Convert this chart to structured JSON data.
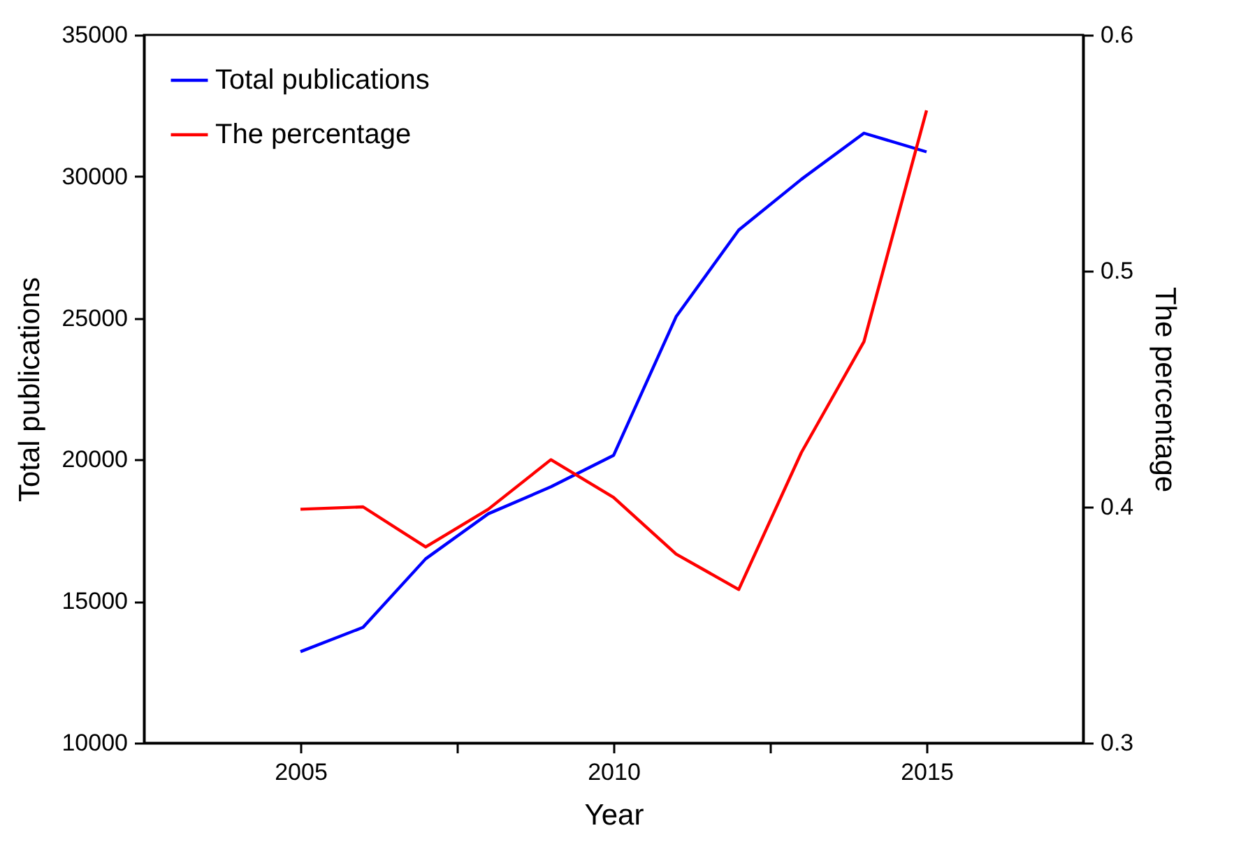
{
  "chart_data": {
    "type": "line",
    "xlabel": "Year",
    "ylabel": "Total publications",
    "y2label": "The percentage",
    "x": [
      2005,
      2006,
      2007,
      2008,
      2009,
      2010,
      2011,
      2012,
      2013,
      2014,
      2015
    ],
    "series": [
      {
        "name": "Total publications",
        "color": "#0000ff",
        "values": [
          13220,
          14080,
          16500,
          18090,
          19040,
          20150,
          25050,
          28110,
          29900,
          31530,
          30870
        ]
      },
      {
        "name": "The percentage",
        "color": "#ff0000",
        "axis": "y2",
        "values": [
          0.399,
          0.4,
          0.383,
          0.399,
          0.42,
          0.404,
          0.38,
          0.365,
          0.423,
          0.47,
          0.568
        ]
      }
    ],
    "xlim": [
      2002.5,
      2017.5
    ],
    "xticks": [
      2005,
      {
        "value": 2007.5,
        "label": null
      },
      2010,
      {
        "value": 2012.5,
        "label": null
      },
      2015
    ],
    "ylim": [
      10000,
      35000
    ],
    "yticks": [
      10000,
      15000,
      20000,
      25000,
      30000,
      35000
    ],
    "y2lim": [
      0.3,
      0.6
    ],
    "y2ticks": [
      0.3,
      0.4,
      0.5,
      0.6
    ],
    "grid": false,
    "legend": "top left",
    "marker": "none",
    "line_style": "solid"
  }
}
